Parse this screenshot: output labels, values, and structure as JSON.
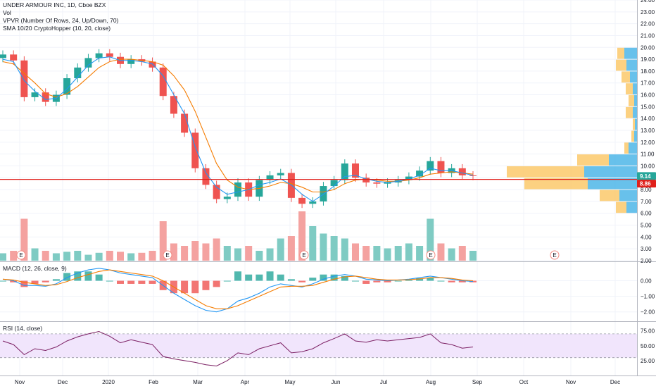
{
  "legend": {
    "title": "UNDER ARMOUR INC, 1D, Cboe BZX",
    "vol": "Vol",
    "vpvr": "VPVR (Number Of Rows, 24, Up/Down, 70)",
    "sma": "SMA 10/20 CryptoHopper (10, 20, close)",
    "macd": "MACD (12, 26, close, 9)",
    "rsi": "RSI (14, close)"
  },
  "price_labels": {
    "last": "9.14",
    "line": "8.86"
  },
  "earnings_marker": "E",
  "colors": {
    "up": "#26a69a",
    "down": "#ef5350",
    "up_vol": "#7fcbc3",
    "down_vol": "#f4a2a0",
    "sma_fast": "#2196f3",
    "sma_slow": "#f57c00",
    "vpvr_up": "#4db6e8",
    "vpvr_down": "#fbc96b",
    "hline": "#e0201b",
    "rsi_band": "#f1e5fc",
    "rsi_line": "#7b1f63",
    "macd_hist_up": "#26a69a",
    "macd_hist_down": "#ef5350"
  },
  "chart_data": [
    {
      "type": "candlestick",
      "panel": "price",
      "x": [
        "2019-10-25",
        "2019-11-01",
        "2019-11-08",
        "2019-11-15",
        "2019-11-22",
        "2019-11-29",
        "2019-12-06",
        "2019-12-13",
        "2019-12-20",
        "2019-12-27",
        "2020-01-03",
        "2020-01-10",
        "2020-01-17",
        "2020-01-24",
        "2020-01-31",
        "2020-02-07",
        "2020-02-14",
        "2020-02-21",
        "2020-02-28",
        "2020-03-06",
        "2020-03-13",
        "2020-03-20",
        "2020-03-27",
        "2020-04-03",
        "2020-04-10",
        "2020-04-17",
        "2020-04-24",
        "2020-05-01",
        "2020-05-08",
        "2020-05-15",
        "2020-05-22",
        "2020-05-29",
        "2020-06-05",
        "2020-06-12",
        "2020-06-19",
        "2020-06-26",
        "2020-07-03",
        "2020-07-10",
        "2020-07-17",
        "2020-07-24",
        "2020-07-31",
        "2020-08-07",
        "2020-08-14",
        "2020-08-21",
        "2020-08-28"
      ],
      "close": [
        19.4,
        18.9,
        15.8,
        16.2,
        15.4,
        16.0,
        17.4,
        18.3,
        19.1,
        19.5,
        19.2,
        18.6,
        19.0,
        18.8,
        18.3,
        15.9,
        14.4,
        12.8,
        9.8,
        8.4,
        7.2,
        7.4,
        8.6,
        7.4,
        8.8,
        9.2,
        9.4,
        7.3,
        6.8,
        7.0,
        8.3,
        8.8,
        10.2,
        9.0,
        8.6,
        8.5,
        8.6,
        8.8,
        9.1,
        9.6,
        10.4,
        9.4,
        9.8,
        9.2,
        9.14
      ],
      "sma_fast": [
        19.0,
        18.8,
        17.2,
        16.3,
        15.6,
        15.7,
        16.5,
        17.5,
        18.5,
        19.1,
        19.2,
        18.9,
        18.9,
        18.8,
        18.6,
        17.6,
        16.0,
        14.4,
        11.6,
        9.4,
        8.2,
        7.6,
        7.8,
        8.0,
        8.4,
        8.6,
        8.9,
        8.4,
        7.6,
        7.0,
        7.6,
        8.3,
        9.1,
        9.2,
        8.9,
        8.7,
        8.6,
        8.7,
        8.9,
        9.2,
        9.8,
        9.6,
        9.6,
        9.4,
        9.2
      ],
      "sma_slow": [
        18.8,
        18.6,
        17.8,
        17.0,
        16.1,
        15.8,
        16.1,
        16.7,
        17.5,
        18.3,
        18.8,
        19.0,
        19.0,
        18.9,
        18.8,
        18.5,
        17.6,
        16.4,
        14.6,
        12.4,
        10.2,
        8.8,
        8.2,
        8.0,
        8.1,
        8.3,
        8.6,
        8.5,
        8.2,
        7.8,
        7.8,
        8.0,
        8.5,
        8.8,
        8.9,
        8.8,
        8.7,
        8.7,
        8.8,
        9.0,
        9.3,
        9.4,
        9.5,
        9.4,
        9.3
      ],
      "ylim": [
        2.0,
        24.0
      ],
      "yticks": [
        "2.00",
        "3.00",
        "4.00",
        "5.00",
        "6.00",
        "7.00",
        "8.00",
        "9.00",
        "10.00",
        "11.00",
        "12.00",
        "13.00",
        "14.00",
        "15.00",
        "16.00",
        "17.00",
        "18.00",
        "19.00",
        "20.00",
        "21.00",
        "22.00",
        "23.00",
        "24.00"
      ],
      "hline": 8.86,
      "last": 9.14
    },
    {
      "type": "bar",
      "panel": "volume",
      "values": [
        0.15,
        0.2,
        0.85,
        0.25,
        0.2,
        0.15,
        0.18,
        0.2,
        0.12,
        0.16,
        0.2,
        0.18,
        0.15,
        0.16,
        0.2,
        0.8,
        0.35,
        0.3,
        0.4,
        0.35,
        0.45,
        0.3,
        0.25,
        0.3,
        0.2,
        0.25,
        0.45,
        0.5,
        1.0,
        0.7,
        0.55,
        0.5,
        0.45,
        0.35,
        0.3,
        0.3,
        0.25,
        0.3,
        0.35,
        0.3,
        0.85,
        0.35,
        0.25,
        0.3,
        0.2
      ],
      "direction": [
        "u",
        "d",
        "d",
        "u",
        "d",
        "u",
        "u",
        "u",
        "u",
        "u",
        "d",
        "d",
        "u",
        "d",
        "d",
        "d",
        "d",
        "d",
        "d",
        "d",
        "d",
        "u",
        "u",
        "d",
        "u",
        "u",
        "u",
        "d",
        "d",
        "u",
        "u",
        "u",
        "u",
        "d",
        "d",
        "u",
        "u",
        "u",
        "u",
        "u",
        "u",
        "d",
        "u",
        "d",
        "u"
      ]
    },
    {
      "type": "bar",
      "panel": "vpvr",
      "price_bins": [
        6.5,
        7.5,
        8.5,
        9.5,
        10.5,
        11.5,
        12.5,
        13.5,
        14.5,
        15.5,
        16.5,
        17.5,
        18.5,
        19.5
      ],
      "up": [
        15,
        25,
        70,
        75,
        40,
        12,
        4,
        3,
        6,
        4,
        6,
        10,
        15,
        18
      ],
      "down": [
        15,
        28,
        90,
        110,
        45,
        6,
        4,
        3,
        10,
        8,
        10,
        12,
        15,
        10
      ]
    },
    {
      "type": "line",
      "panel": "macd",
      "macd": [
        0.1,
        0.0,
        -0.3,
        -0.3,
        -0.35,
        -0.2,
        0.2,
        0.5,
        0.7,
        0.8,
        0.7,
        0.5,
        0.4,
        0.3,
        0.2,
        -0.3,
        -0.8,
        -1.2,
        -1.6,
        -1.9,
        -2.0,
        -1.8,
        -1.3,
        -1.1,
        -0.8,
        -0.4,
        -0.2,
        -0.3,
        -0.4,
        -0.2,
        0.1,
        0.3,
        0.4,
        0.3,
        0.1,
        0.05,
        0.0,
        0.05,
        0.1,
        0.2,
        0.3,
        0.2,
        0.1,
        0.0,
        -0.05
      ],
      "signal": [
        0.1,
        0.05,
        -0.1,
        -0.2,
        -0.3,
        -0.25,
        -0.05,
        0.2,
        0.4,
        0.6,
        0.7,
        0.6,
        0.5,
        0.4,
        0.3,
        0.0,
        -0.4,
        -0.8,
        -1.2,
        -1.6,
        -1.8,
        -1.8,
        -1.6,
        -1.3,
        -1.0,
        -0.7,
        -0.4,
        -0.35,
        -0.35,
        -0.3,
        -0.1,
        0.1,
        0.25,
        0.3,
        0.2,
        0.1,
        0.05,
        0.05,
        0.07,
        0.12,
        0.2,
        0.2,
        0.15,
        0.05,
        0.0
      ],
      "ylim": [
        -2.6,
        1.2
      ],
      "yticks": [
        "0.00",
        "−1.00",
        "−2.00"
      ]
    },
    {
      "type": "line",
      "panel": "rsi",
      "values": [
        58,
        52,
        35,
        45,
        42,
        48,
        58,
        65,
        70,
        74,
        66,
        55,
        60,
        56,
        52,
        32,
        28,
        25,
        22,
        18,
        16,
        25,
        38,
        35,
        45,
        50,
        55,
        38,
        40,
        45,
        55,
        62,
        70,
        58,
        56,
        60,
        58,
        60,
        62,
        64,
        70,
        55,
        52,
        46,
        48
      ],
      "ylim": [
        0,
        90
      ],
      "band": [
        30,
        70
      ],
      "yticks": [
        "75.00",
        "50.00",
        "25.00"
      ]
    }
  ],
  "x_axis": {
    "labels": [
      "Nov",
      "Dec",
      "2020",
      "Feb",
      "Mar",
      "Apr",
      "May",
      "Jun",
      "Jul",
      "Aug",
      "Sep",
      "Oct",
      "Nov",
      "Dec"
    ]
  }
}
